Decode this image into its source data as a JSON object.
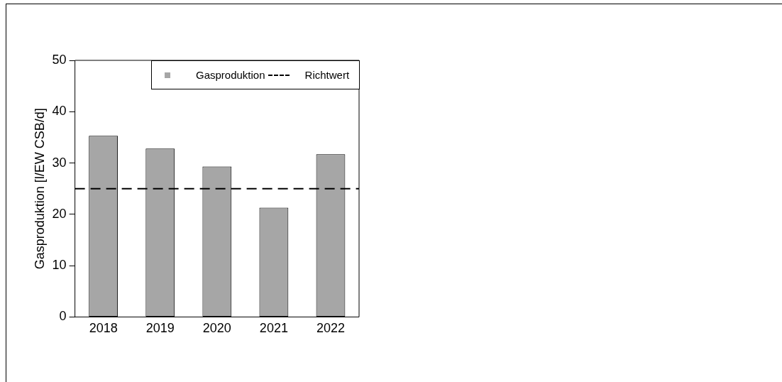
{
  "chart_data": {
    "type": "bar",
    "ylabel": "Gasproduktion [l/EW CSB/d]",
    "categories": [
      "2018",
      "2019",
      "2020",
      "2021",
      "2022"
    ],
    "series": [
      {
        "name": "Gasproduktion",
        "color": "#a6a6a6",
        "values": [
          35.3,
          32.8,
          29.3,
          21.3,
          31.7
        ]
      }
    ],
    "ylim": [
      0,
      50
    ],
    "yticks": [
      0,
      10,
      20,
      30,
      40,
      50
    ],
    "grid": false,
    "legend": "top right",
    "ref_lines": [
      {
        "axis": "y",
        "value": 25,
        "label": "Richtwert",
        "color": "#000000",
        "line_style": "dashed"
      }
    ]
  }
}
